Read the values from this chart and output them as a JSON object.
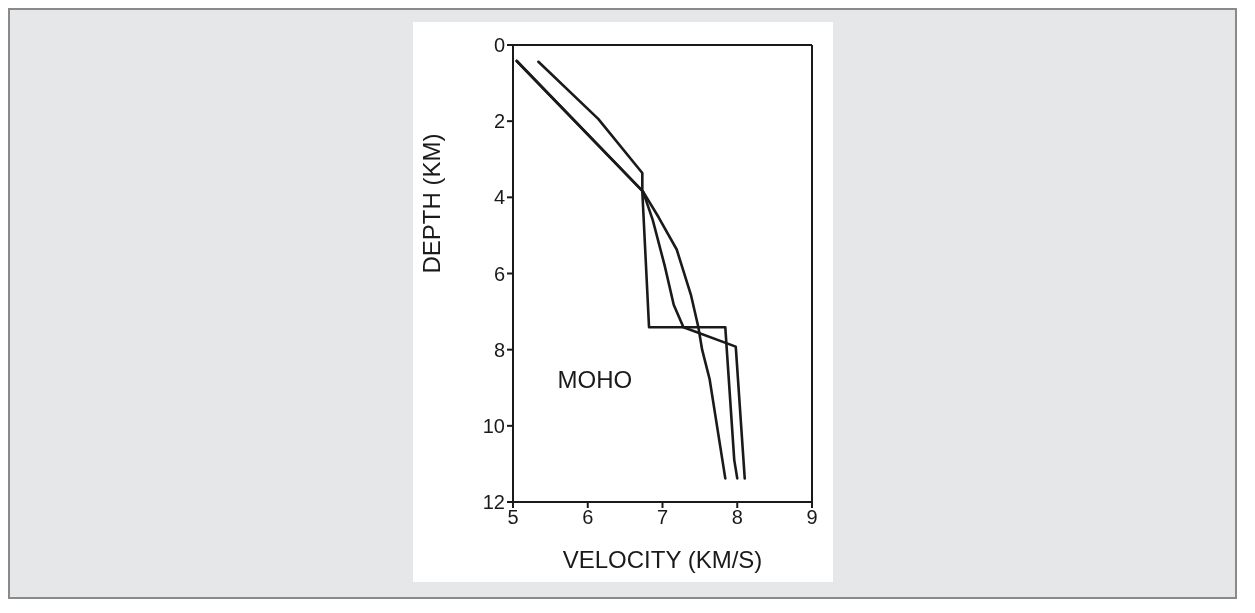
{
  "chart_data": {
    "type": "line",
    "xlabel": "VELOCITY (KM/S)",
    "ylabel": "DEPTH (KM)",
    "xlim": [
      5,
      9
    ],
    "xticks": [
      5,
      6,
      7,
      8,
      9
    ],
    "ylim": [
      12,
      0
    ],
    "yticks": [
      0,
      2,
      4,
      6,
      8,
      10,
      12
    ],
    "grid": false,
    "marker": "none",
    "line_style": "solid",
    "series": [
      {
        "color": "#1a1a1a",
        "x": [
          5.34,
          6.14,
          6.73,
          6.73,
          6.82,
          7.84,
          7.86,
          7.96,
          8.0
        ],
        "values": [
          0.44,
          1.94,
          3.36,
          3.85,
          7.41,
          7.41,
          8.0,
          10.9,
          11.38
        ]
      },
      {
        "color": "#1a1a1a",
        "x": [
          5.05,
          6.74,
          6.95,
          7.19,
          7.38,
          7.48,
          7.53,
          7.63,
          7.84
        ],
        "values": [
          0.42,
          3.85,
          4.53,
          5.37,
          6.56,
          7.41,
          8.0,
          8.77,
          11.38
        ]
      },
      {
        "color": "#1a1a1a",
        "x": [
          5.05,
          6.74,
          6.87,
          7.03,
          7.15,
          7.28,
          7.98,
          8.1
        ],
        "values": [
          0.42,
          3.85,
          4.6,
          5.8,
          6.82,
          7.41,
          7.92,
          11.38
        ]
      }
    ],
    "annotations": [
      "MOHO"
    ]
  }
}
